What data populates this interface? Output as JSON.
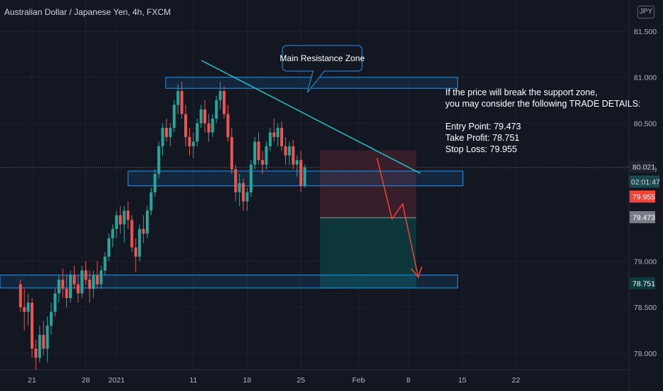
{
  "header": {
    "title": "Australian Dollar / Japanese Yen, 4h, FXCM",
    "currency": "JPY"
  },
  "annotation": {
    "callout": "Main Resistance Zone",
    "trade_text": [
      "If the price will break the support zone,",
      "you may consider the following TRADE DETAILS:",
      "",
      "Entry Point: 79.473",
      "Take Profit: 78.751",
      "Stop Loss: 79.955"
    ]
  },
  "price_labels": {
    "current": "80.021",
    "countdown": "02:01:47",
    "stop_loss": "79.955",
    "entry": "79.473",
    "take_profit": "78.751"
  },
  "colors": {
    "background": "#131722",
    "up": "#26a69a",
    "down": "#ef5350",
    "trendline": "#20c5c9",
    "zone_border": "#2196f3",
    "arrow": "#f44336",
    "stop_zone": "#3b1f2b",
    "profit_zone": "#0d3a3d"
  },
  "chart_data": {
    "type": "candlestick",
    "symbol": "AUDJPY",
    "timeframe": "4h",
    "y_axis": {
      "ticks": [
        "81.500",
        "81.000",
        "80.500",
        "80.000",
        "79.000",
        "78.500",
        "78.000"
      ],
      "range": [
        77.8,
        81.8
      ]
    },
    "x_axis": {
      "ticks": [
        "21",
        "28",
        "2021",
        "11",
        "18",
        "25",
        "Feb",
        "8",
        "15",
        "22"
      ]
    },
    "series": [
      {
        "day": 19.5,
        "o": 78.75,
        "h": 78.8,
        "l": 78.45,
        "c": 78.5
      },
      {
        "day": 20.0,
        "o": 78.5,
        "h": 78.7,
        "l": 78.25,
        "c": 78.45
      },
      {
        "day": 20.5,
        "o": 78.45,
        "h": 78.65,
        "l": 78.3,
        "c": 78.55
      },
      {
        "day": 21.0,
        "o": 78.55,
        "h": 78.6,
        "l": 77.95,
        "c": 78.05
      },
      {
        "day": 21.5,
        "o": 78.05,
        "h": 78.15,
        "l": 77.82,
        "c": 77.95
      },
      {
        "day": 22.0,
        "o": 77.95,
        "h": 78.3,
        "l": 77.9,
        "c": 78.2
      },
      {
        "day": 22.5,
        "o": 78.2,
        "h": 78.35,
        "l": 77.98,
        "c": 78.05
      },
      {
        "day": 23.0,
        "o": 78.05,
        "h": 78.4,
        "l": 77.9,
        "c": 78.3
      },
      {
        "day": 23.5,
        "o": 78.3,
        "h": 78.55,
        "l": 78.2,
        "c": 78.45
      },
      {
        "day": 24.0,
        "o": 78.45,
        "h": 78.7,
        "l": 78.4,
        "c": 78.65
      },
      {
        "day": 24.5,
        "o": 78.65,
        "h": 78.85,
        "l": 78.55,
        "c": 78.8
      },
      {
        "day": 25.0,
        "o": 78.8,
        "h": 78.92,
        "l": 78.6,
        "c": 78.7
      },
      {
        "day": 25.5,
        "o": 78.7,
        "h": 78.85,
        "l": 78.5,
        "c": 78.6
      },
      {
        "day": 26.0,
        "o": 78.6,
        "h": 78.9,
        "l": 78.55,
        "c": 78.85
      },
      {
        "day": 26.5,
        "o": 78.85,
        "h": 78.95,
        "l": 78.7,
        "c": 78.75
      },
      {
        "day": 27.0,
        "o": 78.75,
        "h": 78.85,
        "l": 78.55,
        "c": 78.65
      },
      {
        "day": 27.5,
        "o": 78.65,
        "h": 78.95,
        "l": 78.6,
        "c": 78.9
      },
      {
        "day": 28.0,
        "o": 78.9,
        "h": 79.0,
        "l": 78.75,
        "c": 78.8
      },
      {
        "day": 28.5,
        "o": 78.8,
        "h": 78.9,
        "l": 78.55,
        "c": 78.7
      },
      {
        "day": 29.0,
        "o": 78.7,
        "h": 78.9,
        "l": 78.6,
        "c": 78.85
      },
      {
        "day": 29.5,
        "o": 78.85,
        "h": 79.0,
        "l": 78.7,
        "c": 78.75
      },
      {
        "day": 30.0,
        "o": 78.75,
        "h": 78.95,
        "l": 78.7,
        "c": 78.9
      },
      {
        "day": 30.5,
        "o": 78.9,
        "h": 79.1,
        "l": 78.85,
        "c": 79.05
      },
      {
        "day": 31.0,
        "o": 79.05,
        "h": 79.3,
        "l": 79.0,
        "c": 79.25
      },
      {
        "day": 31.5,
        "o": 79.25,
        "h": 79.4,
        "l": 79.15,
        "c": 79.35
      },
      {
        "day": 32.0,
        "o": 79.35,
        "h": 79.55,
        "l": 79.25,
        "c": 79.5
      },
      {
        "day": 32.5,
        "o": 79.5,
        "h": 79.6,
        "l": 79.3,
        "c": 79.4
      },
      {
        "day": 33.0,
        "o": 79.4,
        "h": 79.6,
        "l": 79.2,
        "c": 79.55
      },
      {
        "day": 33.5,
        "o": 79.55,
        "h": 79.65,
        "l": 79.35,
        "c": 79.45
      },
      {
        "day": 34.0,
        "o": 79.45,
        "h": 79.5,
        "l": 79.1,
        "c": 79.15
      },
      {
        "day": 34.5,
        "o": 79.15,
        "h": 79.25,
        "l": 78.88,
        "c": 79.05
      },
      {
        "day": 35.0,
        "o": 79.05,
        "h": 79.4,
        "l": 79.0,
        "c": 79.35
      },
      {
        "day": 35.5,
        "o": 79.35,
        "h": 79.5,
        "l": 79.2,
        "c": 79.3
      },
      {
        "day": 36.0,
        "o": 79.3,
        "h": 79.6,
        "l": 79.25,
        "c": 79.55
      },
      {
        "day": 36.5,
        "o": 79.55,
        "h": 79.8,
        "l": 79.5,
        "c": 79.75
      },
      {
        "day": 37.0,
        "o": 79.75,
        "h": 80.0,
        "l": 79.7,
        "c": 79.95
      },
      {
        "day": 37.5,
        "o": 79.95,
        "h": 80.3,
        "l": 79.9,
        "c": 80.25
      },
      {
        "day": 38.0,
        "o": 80.25,
        "h": 80.5,
        "l": 80.15,
        "c": 80.45
      },
      {
        "day": 38.5,
        "o": 80.45,
        "h": 80.55,
        "l": 80.3,
        "c": 80.35
      },
      {
        "day": 39.0,
        "o": 80.35,
        "h": 80.5,
        "l": 80.25,
        "c": 80.45
      },
      {
        "day": 39.5,
        "o": 80.45,
        "h": 80.75,
        "l": 80.4,
        "c": 80.7
      },
      {
        "day": 40.0,
        "o": 80.7,
        "h": 80.92,
        "l": 80.6,
        "c": 80.85
      },
      {
        "day": 40.5,
        "o": 80.85,
        "h": 80.95,
        "l": 80.55,
        "c": 80.6
      },
      {
        "day": 41.0,
        "o": 80.6,
        "h": 80.7,
        "l": 80.25,
        "c": 80.35
      },
      {
        "day": 41.5,
        "o": 80.35,
        "h": 80.45,
        "l": 80.15,
        "c": 80.25
      },
      {
        "day": 42.0,
        "o": 80.25,
        "h": 80.4,
        "l": 80.12,
        "c": 80.3
      },
      {
        "day": 42.5,
        "o": 80.3,
        "h": 80.55,
        "l": 80.25,
        "c": 80.5
      },
      {
        "day": 43.0,
        "o": 80.5,
        "h": 80.7,
        "l": 80.45,
        "c": 80.65
      },
      {
        "day": 43.5,
        "o": 80.65,
        "h": 80.75,
        "l": 80.4,
        "c": 80.5
      },
      {
        "day": 44.0,
        "o": 80.5,
        "h": 80.6,
        "l": 80.3,
        "c": 80.4
      },
      {
        "day": 44.5,
        "o": 80.4,
        "h": 80.6,
        "l": 80.35,
        "c": 80.55
      },
      {
        "day": 45.0,
        "o": 80.55,
        "h": 80.8,
        "l": 80.5,
        "c": 80.75
      },
      {
        "day": 45.5,
        "o": 80.75,
        "h": 80.95,
        "l": 80.65,
        "c": 80.85
      },
      {
        "day": 46.0,
        "o": 80.85,
        "h": 80.9,
        "l": 80.55,
        "c": 80.6
      },
      {
        "day": 46.5,
        "o": 80.6,
        "h": 80.7,
        "l": 80.3,
        "c": 80.35
      },
      {
        "day": 47.0,
        "o": 80.35,
        "h": 80.45,
        "l": 79.95,
        "c": 80.0
      },
      {
        "day": 47.5,
        "o": 80.0,
        "h": 80.05,
        "l": 79.65,
        "c": 79.75
      },
      {
        "day": 48.0,
        "o": 79.75,
        "h": 79.95,
        "l": 79.6,
        "c": 79.85
      },
      {
        "day": 48.5,
        "o": 79.85,
        "h": 79.9,
        "l": 79.55,
        "c": 79.65
      },
      {
        "day": 49.0,
        "o": 79.65,
        "h": 79.8,
        "l": 79.55,
        "c": 79.75
      },
      {
        "day": 49.5,
        "o": 79.75,
        "h": 80.1,
        "l": 79.7,
        "c": 80.05
      },
      {
        "day": 50.0,
        "o": 80.05,
        "h": 80.35,
        "l": 80.0,
        "c": 80.3
      },
      {
        "day": 50.5,
        "o": 80.3,
        "h": 80.4,
        "l": 80.05,
        "c": 80.1
      },
      {
        "day": 51.0,
        "o": 80.1,
        "h": 80.2,
        "l": 79.95,
        "c": 80.05
      },
      {
        "day": 51.5,
        "o": 80.05,
        "h": 80.3,
        "l": 80.0,
        "c": 80.25
      },
      {
        "day": 52.0,
        "o": 80.25,
        "h": 80.45,
        "l": 80.2,
        "c": 80.4
      },
      {
        "day": 52.5,
        "o": 80.4,
        "h": 80.55,
        "l": 80.3,
        "c": 80.35
      },
      {
        "day": 53.0,
        "o": 80.35,
        "h": 80.5,
        "l": 80.25,
        "c": 80.45
      },
      {
        "day": 53.5,
        "o": 80.45,
        "h": 80.52,
        "l": 80.2,
        "c": 80.25
      },
      {
        "day": 54.0,
        "o": 80.25,
        "h": 80.35,
        "l": 80.05,
        "c": 80.15
      },
      {
        "day": 54.5,
        "o": 80.15,
        "h": 80.3,
        "l": 80.05,
        "c": 80.25
      },
      {
        "day": 55.0,
        "o": 80.25,
        "h": 80.32,
        "l": 80.0,
        "c": 80.05
      },
      {
        "day": 55.5,
        "o": 80.05,
        "h": 80.15,
        "l": 79.92,
        "c": 80.1
      },
      {
        "day": 56.0,
        "o": 80.1,
        "h": 80.2,
        "l": 79.75,
        "c": 79.82
      },
      {
        "day": 56.5,
        "o": 79.82,
        "h": 80.05,
        "l": 79.8,
        "c": 80.02
      }
    ],
    "levels": [
      {
        "name": "Main Resistance Zone",
        "from": 80.88,
        "to": 81.0
      },
      {
        "name": "support-zone",
        "from": 79.82,
        "to": 79.98
      },
      {
        "name": "lower-zone",
        "from": 78.71,
        "to": 78.85
      }
    ]
  }
}
